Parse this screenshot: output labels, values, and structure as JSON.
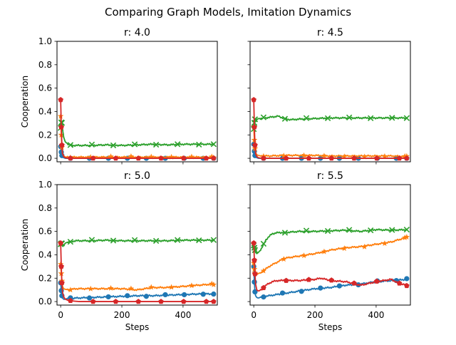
{
  "figure": {
    "title": "Comparing Graph Models, Imitation Dynamics"
  },
  "colors": {
    "blue": "#1f77b4",
    "orange": "#ff7f0e",
    "green": "#2ca02c",
    "red": "#d62728"
  },
  "chart_data": [
    {
      "type": "line",
      "title": "r: 4.0",
      "xlabel": "",
      "ylabel": "Cooperation",
      "xlim": [
        -12,
        512
      ],
      "ylim": [
        -0.03,
        1.0
      ],
      "xticks": [
        0,
        200,
        400
      ],
      "yticks": [
        0.0,
        0.2,
        0.4,
        0.6,
        0.8,
        1.0
      ],
      "show_xticklabels": false,
      "show_yticklabels": true,
      "series": [
        {
          "color": "#1f77b4",
          "marker": "o",
          "x": [
            0,
            3,
            6,
            10,
            15,
            25,
            50,
            100,
            200,
            300,
            400,
            500
          ],
          "y": [
            0.1,
            0.03,
            0.01,
            0.005,
            0.0,
            0.0,
            0.0,
            0.0,
            0.0,
            0.0,
            0.0,
            0.0
          ]
        },
        {
          "color": "#ff7f0e",
          "marker": "*",
          "x": [
            0,
            3,
            6,
            10,
            15,
            25,
            50,
            100,
            200,
            300,
            400,
            500
          ],
          "y": [
            0.36,
            0.12,
            0.04,
            0.02,
            0.01,
            0.01,
            0.01,
            0.01,
            0.01,
            0.01,
            0.01,
            0.01
          ]
        },
        {
          "color": "#2ca02c",
          "marker": "x",
          "x": [
            0,
            3,
            6,
            10,
            15,
            25,
            40,
            60,
            100,
            150,
            200,
            250,
            300,
            350,
            400,
            450,
            500
          ],
          "y": [
            0.26,
            0.33,
            0.25,
            0.18,
            0.14,
            0.12,
            0.11,
            0.11,
            0.11,
            0.115,
            0.11,
            0.115,
            0.12,
            0.115,
            0.12,
            0.12,
            0.12
          ]
        },
        {
          "color": "#d62728",
          "marker": "p",
          "x": [
            0,
            3,
            6,
            10,
            15,
            25,
            50,
            100,
            200,
            300,
            400,
            500
          ],
          "y": [
            0.5,
            0.15,
            0.04,
            0.015,
            0.005,
            0.0,
            0.0,
            0.0,
            0.0,
            0.0,
            0.0,
            0.0
          ]
        }
      ]
    },
    {
      "type": "line",
      "title": "r: 4.5",
      "xlabel": "",
      "ylabel": "",
      "xlim": [
        -12,
        512
      ],
      "ylim": [
        -0.03,
        1.0
      ],
      "xticks": [
        0,
        200,
        400
      ],
      "yticks": [
        0.0,
        0.2,
        0.4,
        0.6,
        0.8,
        1.0
      ],
      "show_xticklabels": false,
      "show_yticklabels": false,
      "series": [
        {
          "color": "#1f77b4",
          "marker": "o",
          "x": [
            0,
            3,
            6,
            10,
            15,
            25,
            50,
            100,
            200,
            300,
            400,
            500
          ],
          "y": [
            0.12,
            0.03,
            0.01,
            0.005,
            0.0,
            0.0,
            0.0,
            0.0,
            0.0,
            0.0,
            0.0,
            0.0
          ]
        },
        {
          "color": "#ff7f0e",
          "marker": "*",
          "x": [
            0,
            3,
            6,
            10,
            15,
            25,
            50,
            100,
            150,
            200,
            250,
            300,
            350,
            400,
            450,
            500
          ],
          "y": [
            0.27,
            0.1,
            0.05,
            0.03,
            0.025,
            0.02,
            0.02,
            0.025,
            0.025,
            0.025,
            0.02,
            0.02,
            0.02,
            0.02,
            0.02,
            0.015
          ]
        },
        {
          "color": "#2ca02c",
          "marker": "x",
          "x": [
            0,
            3,
            6,
            10,
            15,
            25,
            50,
            80,
            100,
            120,
            150,
            200,
            250,
            300,
            350,
            400,
            450,
            500
          ],
          "y": [
            0.25,
            0.33,
            0.34,
            0.33,
            0.34,
            0.34,
            0.35,
            0.36,
            0.34,
            0.33,
            0.335,
            0.34,
            0.345,
            0.345,
            0.345,
            0.345,
            0.345,
            0.345
          ]
        },
        {
          "color": "#d62728",
          "marker": "p",
          "x": [
            0,
            3,
            6,
            10,
            15,
            25,
            50,
            100,
            200,
            300,
            400,
            500
          ],
          "y": [
            0.5,
            0.15,
            0.04,
            0.015,
            0.005,
            0.0,
            0.0,
            0.0,
            0.0,
            0.0,
            0.0,
            0.0
          ]
        }
      ]
    },
    {
      "type": "line",
      "title": "r: 5.0",
      "xlabel": "Steps",
      "ylabel": "Cooperation",
      "xlim": [
        -12,
        512
      ],
      "ylim": [
        -0.03,
        1.0
      ],
      "xticks": [
        0,
        200,
        400
      ],
      "yticks": [
        0.0,
        0.2,
        0.4,
        0.6,
        0.8,
        1.0
      ],
      "show_xticklabels": true,
      "show_yticklabels": true,
      "series": [
        {
          "color": "#1f77b4",
          "marker": "o",
          "x": [
            0,
            3,
            6,
            10,
            15,
            20,
            25,
            50,
            100,
            150,
            200,
            250,
            300,
            350,
            400,
            450,
            500
          ],
          "y": [
            0.16,
            0.06,
            0.03,
            0.02,
            0.02,
            0.025,
            0.025,
            0.03,
            0.035,
            0.04,
            0.045,
            0.05,
            0.05,
            0.055,
            0.06,
            0.065,
            0.065
          ]
        },
        {
          "color": "#ff7f0e",
          "marker": "*",
          "x": [
            0,
            3,
            6,
            10,
            15,
            25,
            50,
            100,
            150,
            200,
            250,
            300,
            350,
            400,
            450,
            500
          ],
          "y": [
            0.32,
            0.2,
            0.13,
            0.11,
            0.105,
            0.1,
            0.11,
            0.11,
            0.11,
            0.11,
            0.1,
            0.12,
            0.12,
            0.13,
            0.14,
            0.15
          ]
        },
        {
          "color": "#2ca02c",
          "marker": "x",
          "x": [
            0,
            3,
            6,
            10,
            15,
            25,
            50,
            80,
            100,
            150,
            200,
            250,
            300,
            350,
            400,
            450,
            500
          ],
          "y": [
            0.49,
            0.5,
            0.49,
            0.48,
            0.5,
            0.51,
            0.52,
            0.52,
            0.52,
            0.525,
            0.52,
            0.52,
            0.52,
            0.52,
            0.525,
            0.525,
            0.525
          ]
        },
        {
          "color": "#d62728",
          "marker": "p",
          "x": [
            0,
            3,
            6,
            10,
            15,
            25,
            40,
            60,
            100,
            200,
            300,
            400,
            500
          ],
          "y": [
            0.5,
            0.2,
            0.08,
            0.04,
            0.02,
            0.01,
            0.005,
            0.0,
            0.0,
            0.0,
            0.0,
            0.0,
            0.0
          ]
        }
      ]
    },
    {
      "type": "line",
      "title": "r: 5.5",
      "xlabel": "Steps",
      "ylabel": "",
      "xlim": [
        -12,
        512
      ],
      "ylim": [
        -0.03,
        1.0
      ],
      "xticks": [
        0,
        200,
        400
      ],
      "yticks": [
        0.0,
        0.2,
        0.4,
        0.6,
        0.8,
        1.0
      ],
      "show_xticklabels": true,
      "show_yticklabels": false,
      "series": [
        {
          "color": "#1f77b4",
          "marker": "o",
          "x": [
            0,
            3,
            6,
            10,
            15,
            25,
            50,
            100,
            150,
            200,
            250,
            300,
            350,
            400,
            450,
            500
          ],
          "y": [
            0.3,
            0.1,
            0.05,
            0.035,
            0.03,
            0.04,
            0.05,
            0.07,
            0.09,
            0.11,
            0.12,
            0.14,
            0.15,
            0.17,
            0.18,
            0.19
          ]
        },
        {
          "color": "#ff7f0e",
          "marker": "*",
          "x": [
            0,
            3,
            6,
            10,
            15,
            25,
            50,
            100,
            150,
            200,
            250,
            300,
            350,
            400,
            450,
            500
          ],
          "y": [
            0.33,
            0.25,
            0.23,
            0.23,
            0.24,
            0.25,
            0.3,
            0.37,
            0.39,
            0.41,
            0.44,
            0.46,
            0.47,
            0.49,
            0.51,
            0.55
          ]
        },
        {
          "color": "#2ca02c",
          "marker": "x",
          "x": [
            0,
            3,
            6,
            10,
            15,
            25,
            40,
            60,
            80,
            100,
            150,
            200,
            250,
            300,
            350,
            400,
            450,
            500
          ],
          "y": [
            0.48,
            0.45,
            0.42,
            0.41,
            0.42,
            0.45,
            0.53,
            0.58,
            0.59,
            0.59,
            0.6,
            0.6,
            0.605,
            0.61,
            0.6,
            0.615,
            0.61,
            0.615
          ]
        },
        {
          "color": "#d62728",
          "marker": "p",
          "x": [
            0,
            3,
            6,
            10,
            15,
            25,
            40,
            60,
            80,
            100,
            150,
            200,
            220,
            250,
            300,
            350,
            400,
            450,
            470,
            500
          ],
          "y": [
            0.5,
            0.28,
            0.15,
            0.1,
            0.09,
            0.1,
            0.14,
            0.17,
            0.18,
            0.18,
            0.18,
            0.19,
            0.2,
            0.18,
            0.17,
            0.14,
            0.17,
            0.19,
            0.16,
            0.14
          ]
        }
      ]
    }
  ]
}
